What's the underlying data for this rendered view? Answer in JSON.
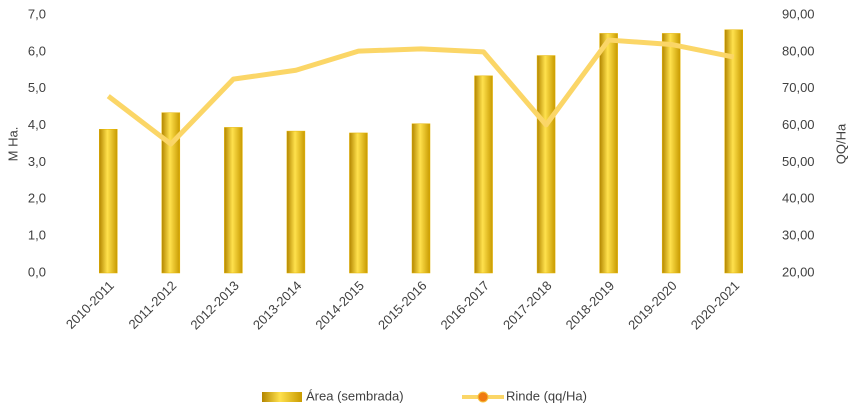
{
  "chart_data": {
    "type": "bar_line",
    "categories": [
      "2010-2011",
      "2011-2012",
      "2012-2013",
      "2013-2014",
      "2014-2015",
      "2015-2016",
      "2016-2017",
      "2017-2018",
      "2018-2019",
      "2019-2020",
      "2020-2021"
    ],
    "series": [
      {
        "name": "Área (sembrada)",
        "color": "#e6b400",
        "type": "bar",
        "values": [
          3.9,
          4.35,
          3.95,
          3.85,
          3.8,
          4.05,
          5.35,
          5.9,
          6.5,
          6.5,
          6.6
        ]
      },
      {
        "name": "Rinde (qq/Ha)",
        "color": "#fbd667",
        "type": "line",
        "axis": "y2",
        "values": [
          68,
          55,
          72.6,
          75,
          80.2,
          80.8,
          80,
          60.2,
          83.2,
          82,
          78.6
        ]
      }
    ],
    "ylabel": "M Ha.",
    "y2label": "QQ/Ha",
    "ylim": [
      0,
      7
    ],
    "yticks": [
      {
        "value": 0,
        "label": "0,0"
      },
      {
        "value": 1,
        "label": "1,0"
      },
      {
        "value": 2,
        "label": "2,0"
      },
      {
        "value": 3,
        "label": "3,0"
      },
      {
        "value": 4,
        "label": "4,0"
      },
      {
        "value": 5,
        "label": "5,0"
      },
      {
        "value": 6,
        "label": "6,0"
      },
      {
        "value": 7,
        "label": "7,0"
      }
    ],
    "y2lim": [
      20,
      90
    ],
    "y2ticks": [
      {
        "value": 20,
        "label": "20,00"
      },
      {
        "value": 30,
        "label": "30,00"
      },
      {
        "value": 40,
        "label": "40,00"
      },
      {
        "value": 50,
        "label": "50,00"
      },
      {
        "value": 60,
        "label": "60,00"
      },
      {
        "value": 70,
        "label": "70,00"
      },
      {
        "value": 80,
        "label": "80,00"
      },
      {
        "value": 90,
        "label": "90,00"
      }
    ],
    "legend": "bottom"
  }
}
